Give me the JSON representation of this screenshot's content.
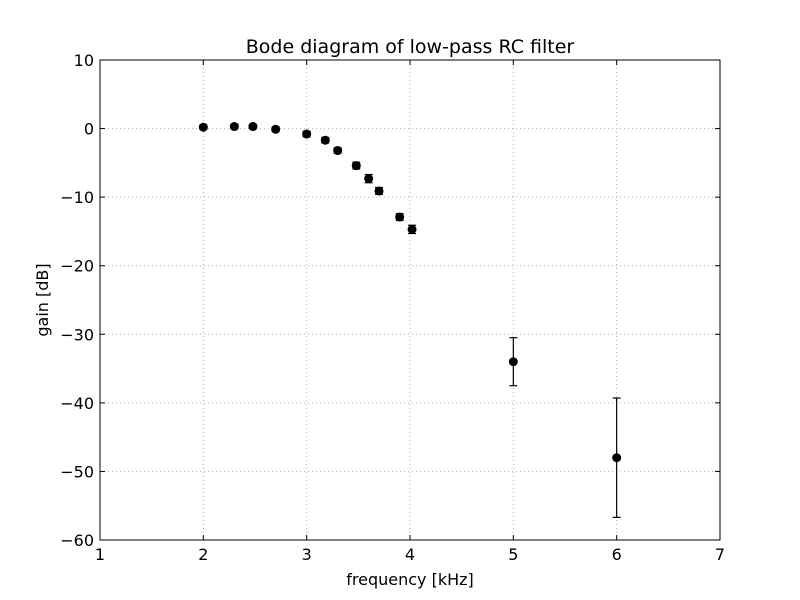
{
  "chart_data": {
    "type": "scatter",
    "title": "Bode diagram of low-pass RC filter",
    "xlabel": "frequency [kHz]",
    "ylabel": "gain [dB]",
    "xlim": [
      1,
      7
    ],
    "ylim": [
      -60,
      10
    ],
    "xticks": [
      1,
      2,
      3,
      4,
      5,
      6,
      7
    ],
    "yticks": [
      10,
      0,
      -10,
      -20,
      -30,
      -40,
      -50,
      -60
    ],
    "grid": true,
    "marker_color": "#000000",
    "points": [
      {
        "x": 2.0,
        "y": 0.2,
        "err": 0.3
      },
      {
        "x": 2.3,
        "y": 0.3,
        "err": 0.3
      },
      {
        "x": 2.48,
        "y": 0.3,
        "err": 0.3
      },
      {
        "x": 2.7,
        "y": -0.1,
        "err": 0.3
      },
      {
        "x": 3.0,
        "y": -0.8,
        "err": 0.4
      },
      {
        "x": 3.18,
        "y": -1.7,
        "err": 0.4
      },
      {
        "x": 3.3,
        "y": -3.2,
        "err": 0.4
      },
      {
        "x": 3.48,
        "y": -5.4,
        "err": 0.5
      },
      {
        "x": 3.6,
        "y": -7.3,
        "err": 0.6
      },
      {
        "x": 3.7,
        "y": -9.1,
        "err": 0.5
      },
      {
        "x": 3.9,
        "y": -12.9,
        "err": 0.5
      },
      {
        "x": 4.02,
        "y": -14.7,
        "err": 0.6
      },
      {
        "x": 5.0,
        "y": -34.0,
        "err": 3.5
      },
      {
        "x": 6.0,
        "y": -48.0,
        "err": 8.7
      }
    ]
  }
}
